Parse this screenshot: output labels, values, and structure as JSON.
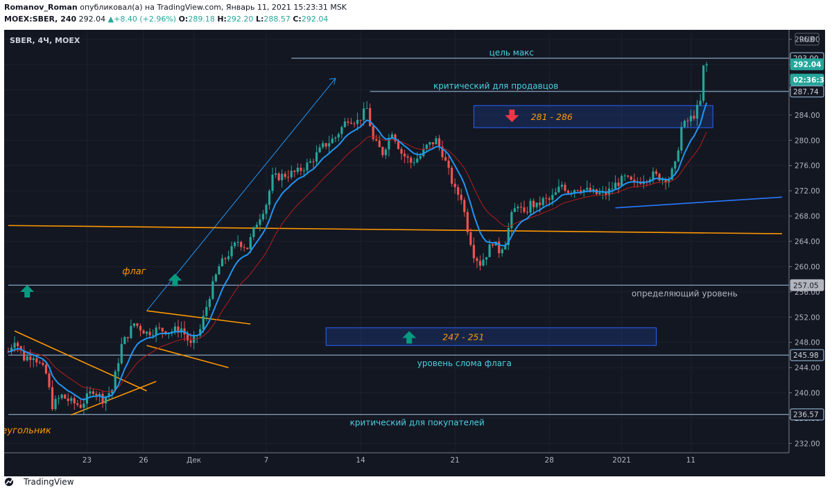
{
  "header": {
    "author": "Romanov_Roman",
    "published_text": " опубликовал(а) на TradingView.com, Январь 11, 2021 15:23:31 MSK",
    "symbol": "MOEX:SBER, 240",
    "last": "292.04",
    "change": "+8.40 (+2.96%)",
    "o_label": "O:",
    "o_value": "289.18",
    "h_label": "H:",
    "h_value": "292.20",
    "l_label": "L:",
    "l_value": "288.57",
    "c_label": "C:",
    "c_value": "292.04"
  },
  "legend": "SBER, 4Ч, MOEX",
  "currency": "RUB",
  "footer": {
    "brand": "TradingView"
  },
  "colors": {
    "up": "#26a69a",
    "down": "#ef5350",
    "ema_fast": "#2196f3",
    "ema_slow": "#b71c1c",
    "orange": "#ff9800",
    "level": "#64b5f6",
    "bg": "#131722",
    "grid": "#1e222d"
  },
  "chart_data": {
    "type": "candlestick",
    "y_axis_ticks": [
      232,
      236,
      240,
      244,
      248,
      252,
      256,
      260,
      264,
      268,
      272,
      276,
      280,
      284,
      288,
      292,
      296
    ],
    "ylim": [
      230.5,
      297.5
    ],
    "x_axis_ticks": [
      {
        "label": "23",
        "bar": 25
      },
      {
        "label": "26",
        "bar": 43
      },
      {
        "label": "Дек",
        "bar": 59
      },
      {
        "label": "7",
        "bar": 82
      },
      {
        "label": "14",
        "bar": 112
      },
      {
        "label": "21",
        "bar": 142
      },
      {
        "label": "28",
        "bar": 172
      },
      {
        "label": "2021",
        "bar": 195
      },
      {
        "label": "11",
        "bar": 217
      }
    ],
    "bar_count": 246,
    "price_labels": [
      {
        "value": 293.0,
        "text": "293.00",
        "style": "outline"
      },
      {
        "value": 292.04,
        "text": "292.04",
        "style": "filled"
      },
      {
        "value": 289.6,
        "text": "02:36:31",
        "style": "filled"
      },
      {
        "value": 287.74,
        "text": "287.74",
        "style": "outline"
      },
      {
        "value": 257.05,
        "text": "257.05",
        "style": "grey"
      },
      {
        "value": 245.98,
        "text": "245.98",
        "style": "outline"
      },
      {
        "value": 236.57,
        "text": "236.57",
        "style": "outline"
      }
    ],
    "levels": [
      {
        "value": 293.0,
        "from_bar": 90,
        "label": "цель макс",
        "label_bar": 160,
        "label_offset": -8
      },
      {
        "value": 287.74,
        "from_bar": 115,
        "label": "критический для продавцов",
        "label_bar": 155,
        "label_offset": -8
      },
      {
        "value": 257.05,
        "from_bar": 0,
        "label": "определяющий уровень",
        "label_bar": 215,
        "label_offset": 12
      },
      {
        "value": 245.98,
        "from_bar": 0,
        "label": "уровень слома флага",
        "label_bar": 145,
        "label_offset": 12
      },
      {
        "value": 236.57,
        "from_bar": 0,
        "label": "критический для покупателей",
        "label_bar": 130,
        "label_offset": 12
      }
    ],
    "zones": [
      {
        "label": "281 - 286",
        "from_bar": 148,
        "to_bar": 224,
        "top": 285.5,
        "bottom": 282.0,
        "arrow": "down"
      },
      {
        "label": "247 - 251",
        "from_bar": 101,
        "to_bar": 206,
        "top": 250.3,
        "bottom": 247.5,
        "arrow": "up"
      }
    ],
    "text_annotations": [
      {
        "text": "флаг",
        "bar": 40,
        "value": 258.8
      },
      {
        "text": "треугольник",
        "bar": 4,
        "value": 233.6
      }
    ],
    "signal_arrows": [
      {
        "direction": "up",
        "bar": 6,
        "value": 256.2
      },
      {
        "direction": "up",
        "bar": 53,
        "value": 258.0
      }
    ],
    "trend_lines": [
      {
        "name": "flag-pole",
        "from": [
          44,
          253.0
        ],
        "to": [
          104,
          289.8
        ],
        "color": "blue",
        "arrow": true
      },
      {
        "name": "horizontal-support",
        "from": [
          0,
          266.5
        ],
        "to": [
          246,
          265.2
        ],
        "color": "orange"
      },
      {
        "name": "flag-upper",
        "from": [
          44,
          253.0
        ],
        "to": [
          77,
          250.9
        ],
        "color": "orange"
      },
      {
        "name": "flag-lower",
        "from": [
          44,
          247.5
        ],
        "to": [
          70,
          244.0
        ],
        "color": "orange"
      },
      {
        "name": "triangle-upper",
        "from": [
          2,
          249.8
        ],
        "to": [
          44,
          240.3
        ],
        "color": "orange"
      },
      {
        "name": "triangle-lower",
        "from": [
          20,
          236.5
        ],
        "to": [
          47,
          241.8
        ],
        "color": "orange"
      },
      {
        "name": "recent-support",
        "from": [
          193,
          269.3
        ],
        "to": [
          246,
          271.0
        ],
        "color": "blue"
      }
    ],
    "series": [
      {
        "name": "",
        "type": "candles",
        "anchors": [
          [
            0,
            246.5
          ],
          [
            2,
            248.5
          ],
          [
            5,
            245.5
          ],
          [
            8,
            246.0
          ],
          [
            12,
            243.0
          ],
          [
            14,
            238.0
          ],
          [
            17,
            239.5
          ],
          [
            20,
            238.5
          ],
          [
            23,
            238.0
          ],
          [
            27,
            240.5
          ],
          [
            30,
            239.0
          ],
          [
            33,
            240.5
          ],
          [
            36,
            247.5
          ],
          [
            40,
            251.0
          ],
          [
            44,
            249.5
          ],
          [
            47,
            250.0
          ],
          [
            52,
            249.8
          ],
          [
            55,
            250.2
          ],
          [
            58,
            247.5
          ],
          [
            61,
            250.0
          ],
          [
            64,
            255.5
          ],
          [
            67,
            260.0
          ],
          [
            70,
            262.0
          ],
          [
            73,
            264.0
          ],
          [
            76,
            263.0
          ],
          [
            79,
            267.0
          ],
          [
            82,
            270.0
          ],
          [
            84,
            274.0
          ],
          [
            88,
            274.5
          ],
          [
            92,
            275.0
          ],
          [
            96,
            276.5
          ],
          [
            100,
            279.0
          ],
          [
            104,
            280.5
          ],
          [
            108,
            283.5
          ],
          [
            111,
            283.0
          ],
          [
            114,
            285.0
          ],
          [
            116,
            280.0
          ],
          [
            119,
            278.0
          ],
          [
            122,
            281.5
          ],
          [
            125,
            278.0
          ],
          [
            128,
            276.5
          ],
          [
            131,
            277.5
          ],
          [
            133,
            279.0
          ],
          [
            136,
            280.0
          ],
          [
            138,
            278.0
          ],
          [
            140,
            275.0
          ],
          [
            142,
            272.0
          ],
          [
            144,
            271.0
          ],
          [
            146,
            266.0
          ],
          [
            148,
            262.0
          ],
          [
            150,
            260.5
          ],
          [
            152,
            262.0
          ],
          [
            154,
            264.0
          ],
          [
            156,
            262.5
          ],
          [
            158,
            264.0
          ],
          [
            160,
            268.0
          ],
          [
            162,
            270.0
          ],
          [
            164,
            268.0
          ],
          [
            166,
            270.0
          ],
          [
            168,
            269.5
          ],
          [
            170,
            270.5
          ],
          [
            172,
            270.5
          ],
          [
            174,
            271.5
          ],
          [
            176,
            273.0
          ],
          [
            178,
            272.0
          ],
          [
            181,
            272.5
          ],
          [
            184,
            272.0
          ],
          [
            187,
            271.5
          ],
          [
            190,
            271.5
          ],
          [
            193,
            273.0
          ],
          [
            196,
            274.0
          ],
          [
            199,
            273.0
          ],
          [
            202,
            274.0
          ],
          [
            205,
            274.5
          ],
          [
            208,
            274.0
          ],
          [
            210,
            274.0
          ],
          [
            212,
            276.0
          ],
          [
            214,
            282.0
          ],
          [
            216,
            283.0
          ],
          [
            218,
            284.0
          ],
          [
            220,
            286.0
          ],
          [
            221,
            291.5
          ],
          [
            222,
            292.0
          ]
        ]
      },
      {
        "name": "",
        "type": "ema_fast"
      },
      {
        "name": "",
        "type": "ema_slow"
      }
    ]
  }
}
